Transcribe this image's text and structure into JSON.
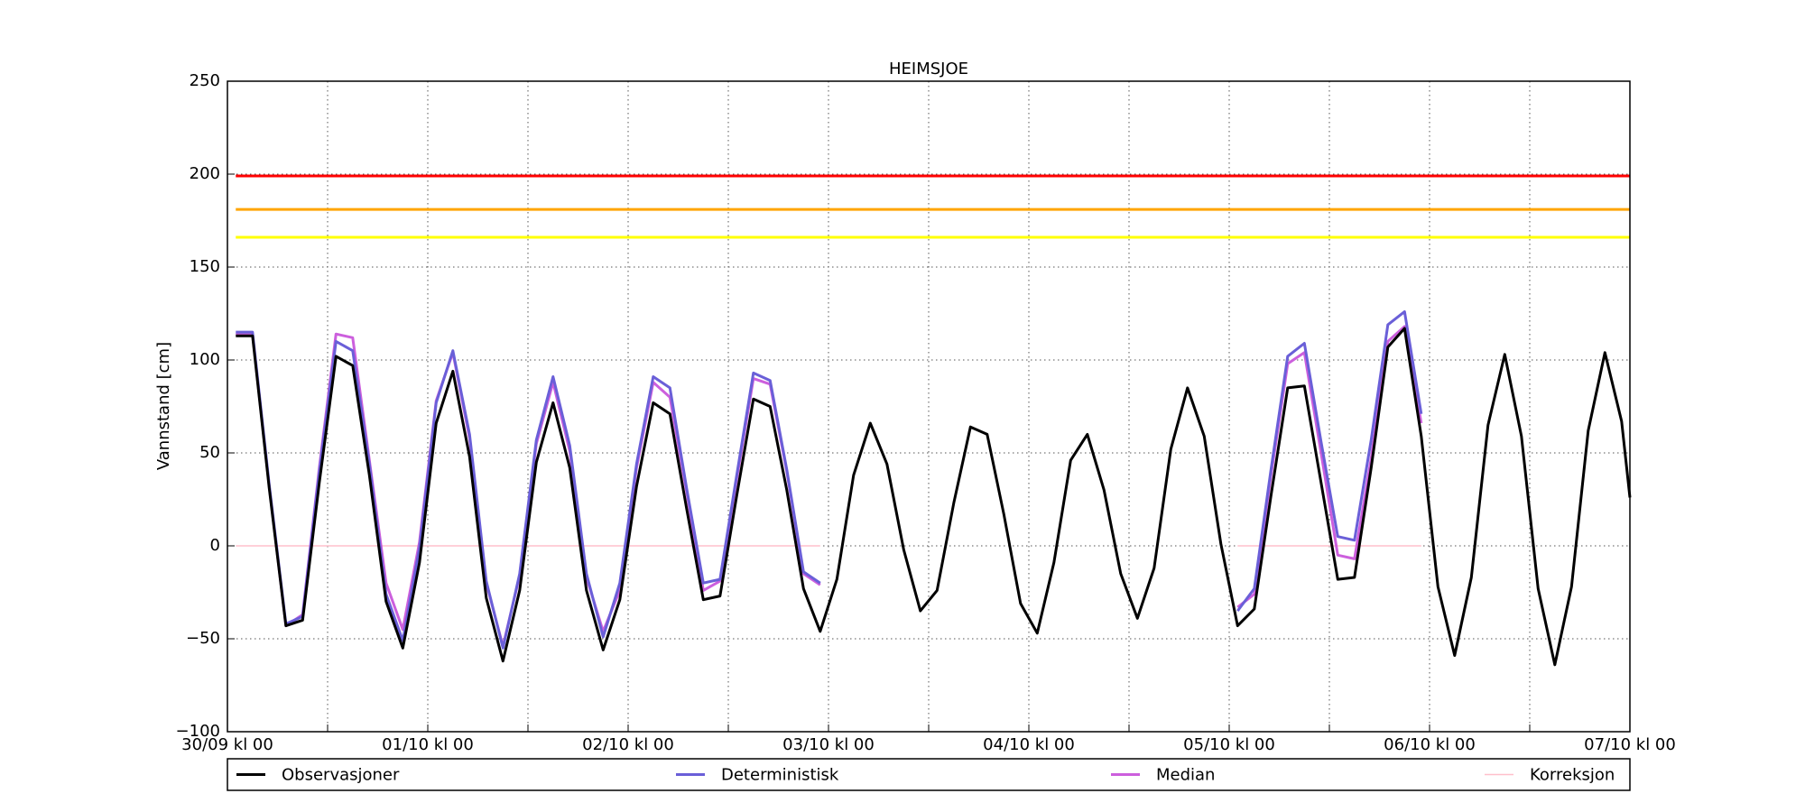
{
  "chart_data": {
    "type": "line",
    "title": "HEIMSJOE",
    "y_label": "Vannstand [cm]",
    "xlim": [
      0,
      168
    ],
    "ylim": [
      -100,
      250
    ],
    "xticks": [
      {
        "value": 0,
        "label": "30/09 kl 00"
      },
      {
        "value": 12,
        "label": null
      },
      {
        "value": 24,
        "label": "01/10 kl 00"
      },
      {
        "value": 36,
        "label": null
      },
      {
        "value": 48,
        "label": "02/10 kl 00"
      },
      {
        "value": 60,
        "label": null
      },
      {
        "value": 72,
        "label": "03/10 kl 00"
      },
      {
        "value": 84,
        "label": null
      },
      {
        "value": 96,
        "label": "04/10 kl 00"
      },
      {
        "value": 108,
        "label": null
      },
      {
        "value": 120,
        "label": "05/10 kl 00"
      },
      {
        "value": 132,
        "label": null
      },
      {
        "value": 144,
        "label": "06/10 kl 00"
      },
      {
        "value": 156,
        "label": null
      },
      {
        "value": 168,
        "label": "07/10 kl 00"
      }
    ],
    "yticks": [
      {
        "value": -100,
        "label": "−100"
      },
      {
        "value": -50,
        "label": "−50"
      },
      0,
      50,
      100,
      150,
      200,
      250
    ],
    "grid": true,
    "thresholds": [
      {
        "value": 199,
        "color": "#ff0000"
      },
      {
        "value": 181,
        "color": "#ffa500"
      },
      {
        "value": 166,
        "color": "#ffff00"
      }
    ],
    "x": [
      1,
      3,
      5,
      7,
      9,
      11,
      13,
      15,
      17,
      19,
      21,
      23,
      25,
      27,
      29,
      31,
      33,
      35,
      37,
      39,
      41,
      43,
      45,
      47,
      49,
      51,
      53,
      55,
      57,
      59,
      61,
      63,
      65,
      67,
      69,
      71,
      73,
      75,
      77,
      79,
      81,
      83,
      85,
      87,
      89,
      91,
      93,
      95,
      97,
      99,
      101,
      103,
      105,
      107,
      109,
      111,
      113,
      115,
      117,
      119,
      121,
      123,
      125,
      127,
      129,
      131,
      133,
      135,
      137,
      139,
      141,
      143,
      145,
      147,
      149,
      151,
      153,
      155,
      157,
      159,
      161,
      163,
      165,
      167,
      168
    ],
    "series": [
      {
        "name": "Observasjoner",
        "color": "#000000",
        "values": [
          113,
          113,
          31,
          -43,
          -40,
          34,
          102,
          97,
          38,
          -30,
          -55,
          -9,
          66,
          94,
          48,
          -28,
          -62,
          -24,
          45,
          77,
          42,
          -24,
          -56,
          -29,
          32,
          77,
          71,
          20,
          -29,
          -27,
          27,
          79,
          75,
          30,
          -23,
          -46,
          -18,
          38,
          66,
          44,
          -2,
          -35,
          -24,
          23,
          64,
          60,
          17,
          -31,
          -47,
          -9,
          46,
          60,
          30,
          -15,
          -39,
          -12,
          52,
          85,
          59,
          1,
          -43,
          -34,
          27,
          85,
          86,
          34,
          -18,
          -17,
          42,
          107,
          117,
          59,
          -22,
          -59,
          -17,
          65,
          103,
          59,
          -23,
          -64,
          -22,
          62,
          104,
          67,
          26
        ]
      },
      {
        "name": "Deterministisk",
        "color": "#6a5fd8",
        "values": [
          115,
          115,
          33,
          -42,
          -38,
          40,
          110,
          105,
          44,
          -26,
          -51,
          -1,
          77,
          105,
          60,
          -19,
          -55,
          -15,
          57,
          91,
          54,
          -15,
          -49,
          -20,
          44,
          91,
          85,
          31,
          -20,
          -18,
          38,
          93,
          89,
          41,
          -14,
          -20,
          null,
          null,
          null,
          null,
          null,
          null,
          null,
          null,
          null,
          null,
          null,
          null,
          null,
          null,
          null,
          null,
          null,
          null,
          null,
          null,
          null,
          null,
          null,
          null,
          -35,
          -23,
          41,
          102,
          109,
          56,
          5,
          3,
          57,
          119,
          126,
          71,
          null,
          null,
          null,
          null,
          null,
          null,
          null,
          null,
          null,
          null,
          null,
          null,
          null
        ]
      },
      {
        "name": "Median",
        "color": "#cc5fdd",
        "values": [
          114,
          114,
          32,
          -43,
          -37,
          42,
          114,
          112,
          46,
          -20,
          -45,
          2,
          78,
          104,
          58,
          -20,
          -54,
          -16,
          55,
          88,
          51,
          -17,
          -46,
          -24,
          42,
          88,
          80,
          29,
          -24,
          -19,
          36,
          90,
          87,
          40,
          -15,
          -21,
          null,
          null,
          null,
          null,
          null,
          null,
          null,
          null,
          null,
          null,
          null,
          null,
          null,
          null,
          null,
          null,
          null,
          null,
          null,
          null,
          null,
          null,
          null,
          null,
          -33,
          -26,
          38,
          98,
          104,
          50,
          -5,
          -7,
          47,
          110,
          118,
          66,
          null,
          null,
          null,
          null,
          null,
          null,
          null,
          null,
          null,
          null,
          null,
          null,
          null
        ]
      },
      {
        "name": "Korreksjon",
        "color": "#ffc0cb",
        "values": [
          0,
          0,
          0,
          0,
          0,
          0,
          0,
          0,
          0,
          0,
          0,
          0,
          0,
          0,
          0,
          0,
          0,
          0,
          0,
          0,
          0,
          0,
          0,
          0,
          0,
          0,
          0,
          0,
          0,
          0,
          0,
          0,
          0,
          0,
          0,
          0,
          null,
          null,
          null,
          null,
          null,
          null,
          null,
          null,
          null,
          null,
          null,
          null,
          null,
          null,
          null,
          null,
          null,
          null,
          null,
          null,
          null,
          null,
          null,
          null,
          0,
          0,
          0,
          0,
          0,
          0,
          0,
          0,
          0,
          0,
          0,
          0,
          null,
          null,
          null,
          null,
          null,
          null,
          null,
          null,
          null,
          null,
          null,
          null,
          null
        ]
      }
    ]
  }
}
